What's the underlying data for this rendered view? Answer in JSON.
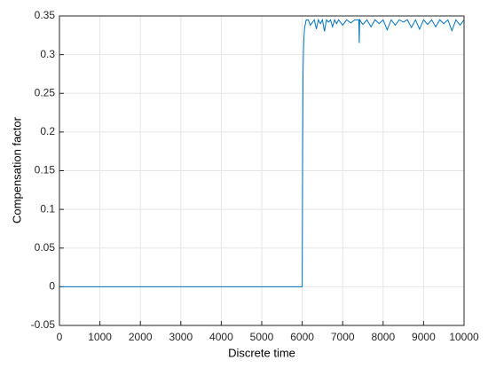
{
  "chart_data": {
    "type": "line",
    "x_label": "Discrete time",
    "y_label": "Compensation factor",
    "xlim": [
      0,
      10000
    ],
    "ylim": [
      -0.05,
      0.35
    ],
    "xticks": [
      0,
      1000,
      2000,
      3000,
      4000,
      5000,
      6000,
      7000,
      8000,
      9000,
      10000
    ],
    "yticks": [
      -0.05,
      0,
      0.05,
      0.1,
      0.15,
      0.2,
      0.25,
      0.3,
      0.35
    ],
    "grid": true,
    "series": [
      {
        "color": "#0072bd",
        "x": [
          0,
          6000,
          6010,
          6020,
          6030,
          6040,
          6060,
          6080,
          6100,
          6150,
          6200,
          6300,
          6350,
          6400,
          6450,
          6500,
          6550,
          6600,
          6650,
          6700,
          6750,
          6800,
          6850,
          6900,
          7000,
          7100,
          7200,
          7300,
          7400,
          7410,
          7420,
          7500,
          7600,
          7700,
          7800,
          7900,
          8000,
          8100,
          8200,
          8300,
          8400,
          8500,
          8600,
          8700,
          8800,
          8900,
          9000,
          9100,
          9200,
          9300,
          9400,
          9500,
          9600,
          9700,
          9800,
          9900,
          10000
        ],
        "values": [
          0,
          0,
          0.16,
          0.27,
          0.3,
          0.32,
          0.335,
          0.34,
          0.345,
          0.345,
          0.338,
          0.345,
          0.333,
          0.345,
          0.34,
          0.345,
          0.33,
          0.345,
          0.342,
          0.345,
          0.336,
          0.345,
          0.34,
          0.345,
          0.338,
          0.345,
          0.341,
          0.345,
          0.345,
          0.315,
          0.345,
          0.339,
          0.345,
          0.336,
          0.345,
          0.34,
          0.345,
          0.332,
          0.345,
          0.338,
          0.345,
          0.342,
          0.345,
          0.335,
          0.345,
          0.333,
          0.345,
          0.339,
          0.345,
          0.336,
          0.345,
          0.34,
          0.345,
          0.331,
          0.345,
          0.338,
          0.345
        ]
      }
    ]
  }
}
